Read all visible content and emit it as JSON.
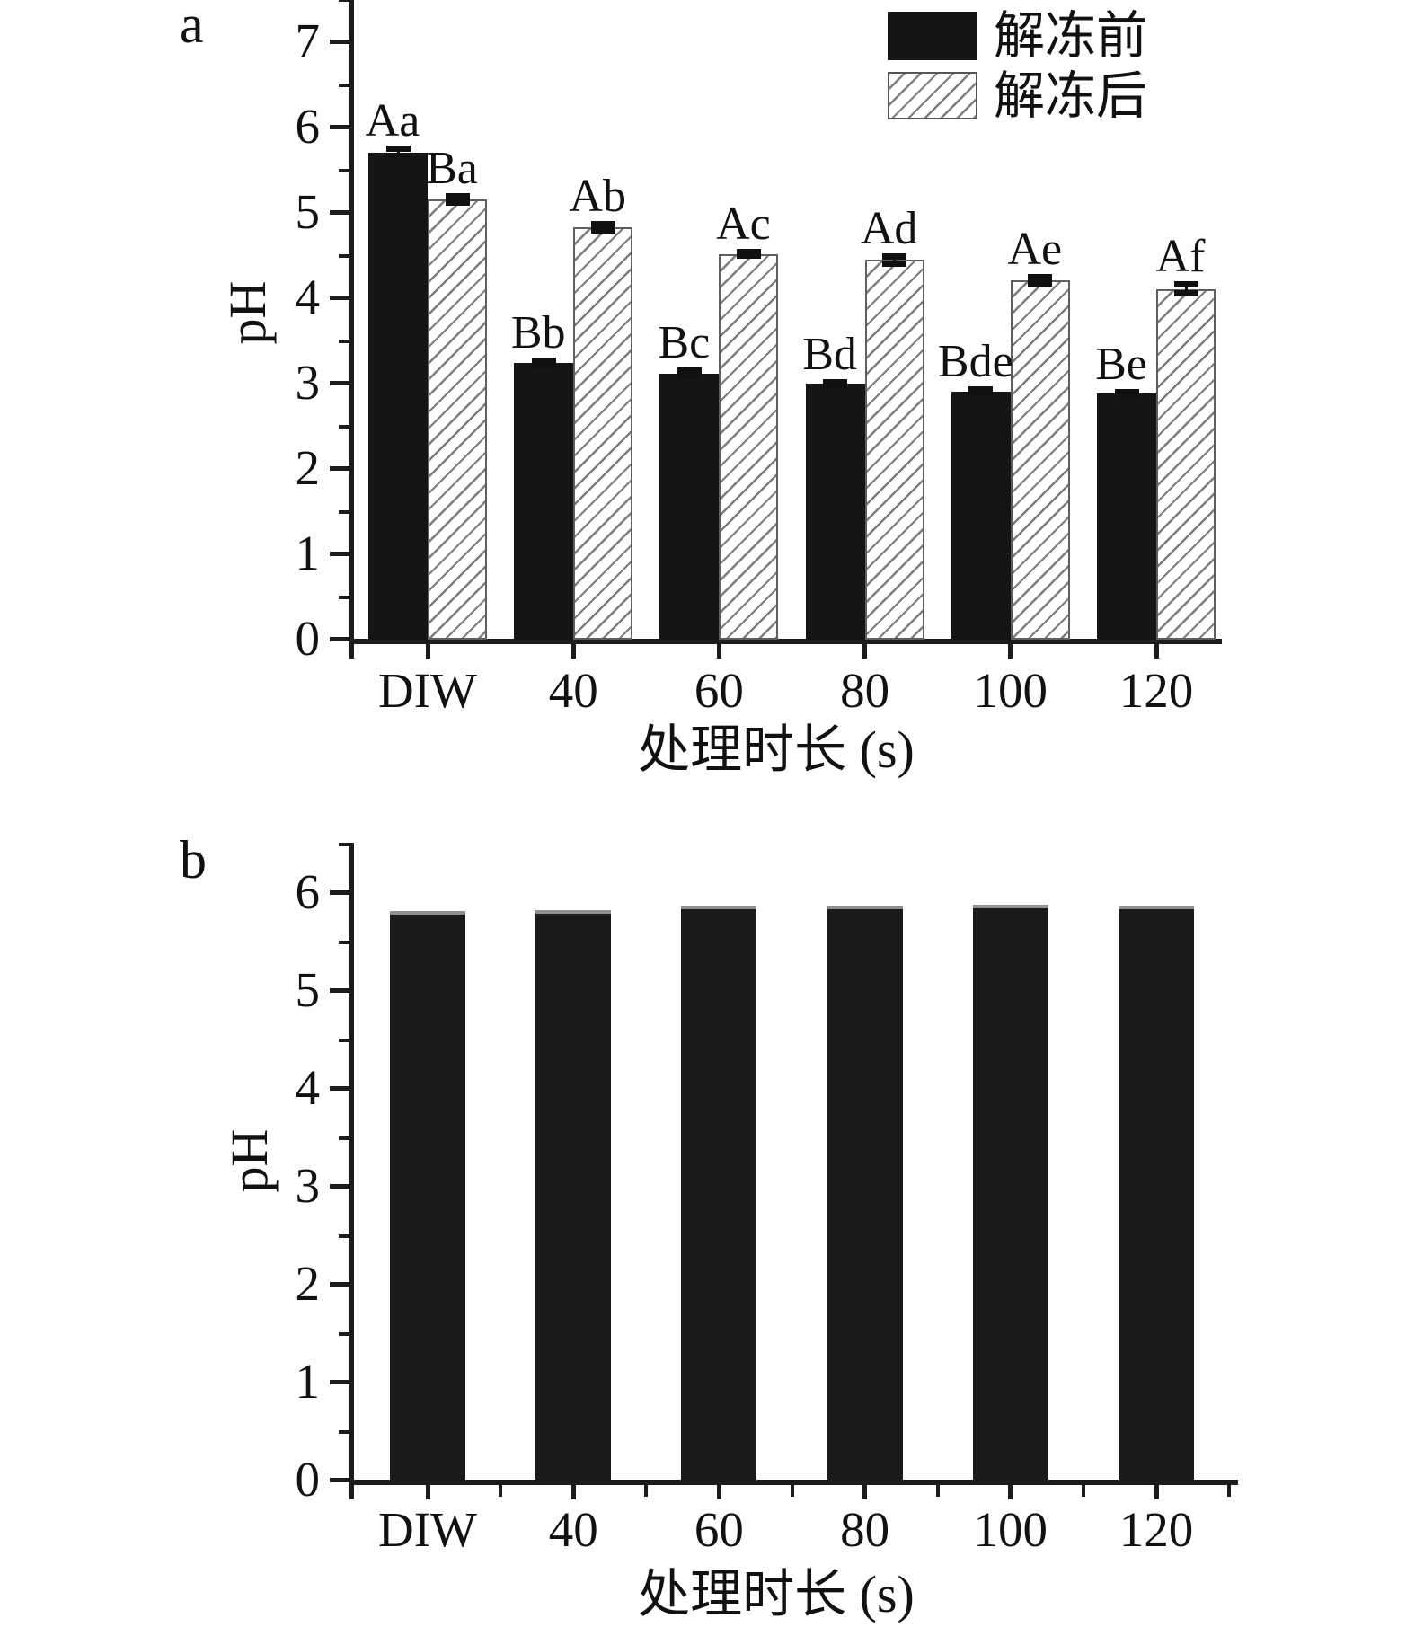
{
  "panels": {
    "a": {
      "letter": "a"
    },
    "b": {
      "letter": "b"
    }
  },
  "legend": {
    "before": "解冻前",
    "after": "解冻后"
  },
  "colors": {
    "bar_solid": "#151515",
    "hatch_line": "#7d7d7d",
    "axis": "#1c1c1c"
  },
  "chart_data": [
    {
      "panel": "a",
      "type": "bar",
      "grouped": true,
      "title": "",
      "xlabel": "处理时长 (s)",
      "ylabel": "pH",
      "categories": [
        "DIW",
        "40",
        "60",
        "80",
        "100",
        "120"
      ],
      "yticks": [
        "0",
        "1",
        "2",
        "3",
        "4",
        "5",
        "6",
        "7"
      ],
      "ylim": [
        0,
        7.5
      ],
      "grid": false,
      "legend_position": "top-right",
      "series": [
        {
          "name": "解冻前",
          "pattern": "solid",
          "values": [
            5.71,
            3.24,
            3.12,
            3.0,
            2.91,
            2.88
          ],
          "errors": [
            0.05,
            0.03,
            0.04,
            0.02,
            0.03,
            0.03
          ],
          "sig_labels": [
            "Aa",
            "Bb",
            "Bc",
            "Bd",
            "Bde",
            "Be"
          ]
        },
        {
          "name": "解冻后",
          "pattern": "hatch",
          "values": [
            5.16,
            4.83,
            4.52,
            4.45,
            4.21,
            4.11
          ],
          "errors": [
            0.04,
            0.04,
            0.03,
            0.05,
            0.04,
            0.06
          ],
          "sig_labels": [
            "Ba",
            "Ab",
            "Ac",
            "Ad",
            "Ae",
            "Af"
          ]
        }
      ]
    },
    {
      "panel": "b",
      "type": "bar",
      "grouped": false,
      "title": "",
      "xlabel": "处理时长 (s)",
      "ylabel": "pH",
      "categories": [
        "DIW",
        "40",
        "60",
        "80",
        "100",
        "120"
      ],
      "yticks": [
        "0",
        "1",
        "2",
        "3",
        "4",
        "5",
        "6"
      ],
      "ylim": [
        0,
        6.5
      ],
      "grid": false,
      "values": [
        5.82,
        5.83,
        5.87,
        5.87,
        5.88,
        5.87
      ]
    }
  ]
}
